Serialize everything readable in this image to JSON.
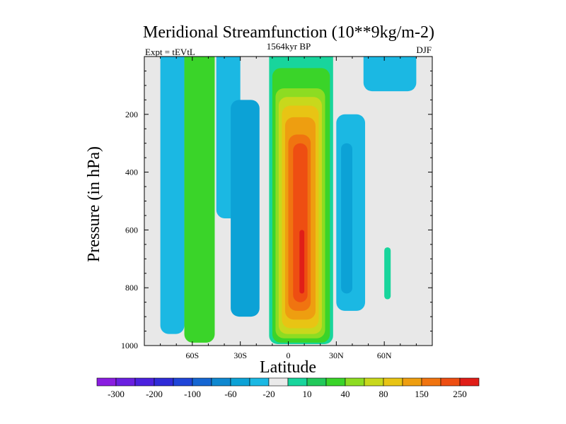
{
  "chart_data": {
    "type": "heatmap",
    "subtype": "filled-contour",
    "title": "Meridional Streamfunction (10**9kg/m-2)",
    "subtitle": "1564kyr BP",
    "left_label": "Expt = tEVtL",
    "right_label": "DJF",
    "xlabel": "Latitude",
    "ylabel": "Pressure (in hPa)",
    "xlim": [
      -90,
      90
    ],
    "ylim": [
      1000,
      0
    ],
    "y_inverted": true,
    "xticks": [
      {
        "value": -60,
        "label": "60S"
      },
      {
        "value": -30,
        "label": "30S"
      },
      {
        "value": 0,
        "label": "0"
      },
      {
        "value": 30,
        "label": "30N"
      },
      {
        "value": 60,
        "label": "60N"
      }
    ],
    "yticks": [
      {
        "value": 200,
        "label": "200"
      },
      {
        "value": 400,
        "label": "400"
      },
      {
        "value": 600,
        "label": "600"
      },
      {
        "value": 800,
        "label": "800"
      },
      {
        "value": 1000,
        "label": "1000"
      }
    ],
    "background_color": "#e8e8e8",
    "colorbar": {
      "colors": [
        "#8a1de0",
        "#6a1fe0",
        "#4b21de",
        "#2f2bd8",
        "#1f45d8",
        "#1566d2",
        "#0f88d0",
        "#0ca2d6",
        "#1bb8e3",
        "#eaeaea",
        "#18d59c",
        "#22c95a",
        "#3ad429",
        "#8ddc22",
        "#c8d81c",
        "#e8c414",
        "#ee9e10",
        "#f07410",
        "#ee4e12",
        "#e01e18"
      ],
      "labels": [
        {
          "after_box": 1,
          "label": "-300"
        },
        {
          "after_box": 3,
          "label": "-200"
        },
        {
          "after_box": 5,
          "label": "-100"
        },
        {
          "after_box": 7,
          "label": "-60"
        },
        {
          "after_box": 9,
          "label": "-20"
        },
        {
          "after_box": 11,
          "label": "10"
        },
        {
          "after_box": 13,
          "label": "40"
        },
        {
          "after_box": 15,
          "label": "80"
        },
        {
          "after_box": 17,
          "label": "150"
        },
        {
          "after_box": 19,
          "label": "250"
        }
      ]
    },
    "regions": [
      {
        "name": "westerly-cell-a",
        "color": "#1bb8e3",
        "lat": [
          -80,
          -65
        ],
        "p_top": 0,
        "p_bottom": 960
      },
      {
        "name": "green-band-south",
        "color": "#3ad429",
        "lat": [
          -65,
          -46
        ],
        "p_top": 0,
        "p_bottom": 990
      },
      {
        "name": "cyan-cell-b",
        "color": "#1bb8e3",
        "lat": [
          -45,
          -30
        ],
        "p_top": 0,
        "p_bottom": 560
      },
      {
        "name": "mid-blue-cell-south",
        "color": "#0ca2d6",
        "lat": [
          -36,
          -18
        ],
        "p_top": 150,
        "p_bottom": 900
      },
      {
        "name": "equatorial-level-1",
        "color": "#18d59c",
        "lat": [
          -12,
          28
        ],
        "p_top": 0,
        "p_bottom": 995
      },
      {
        "name": "equatorial-level-2",
        "color": "#3ad429",
        "lat": [
          -10,
          26
        ],
        "p_top": 40,
        "p_bottom": 990
      },
      {
        "name": "equatorial-level-3",
        "color": "#8ddc22",
        "lat": [
          -8,
          23
        ],
        "p_top": 110,
        "p_bottom": 975
      },
      {
        "name": "equatorial-level-4",
        "color": "#c8d81c",
        "lat": [
          -6,
          21
        ],
        "p_top": 140,
        "p_bottom": 960
      },
      {
        "name": "equatorial-level-5",
        "color": "#e8c414",
        "lat": [
          -4,
          19
        ],
        "p_top": 170,
        "p_bottom": 940
      },
      {
        "name": "equatorial-level-6",
        "color": "#ee9e10",
        "lat": [
          -2,
          17
        ],
        "p_top": 210,
        "p_bottom": 910
      },
      {
        "name": "equatorial-level-7",
        "color": "#f07410",
        "lat": [
          0,
          14
        ],
        "p_top": 270,
        "p_bottom": 880
      },
      {
        "name": "equatorial-level-8",
        "color": "#ee4e12",
        "lat": [
          3,
          12
        ],
        "p_top": 300,
        "p_bottom": 850
      },
      {
        "name": "equatorial-core",
        "color": "#e01e18",
        "lat": [
          7,
          10
        ],
        "p_top": 600,
        "p_bottom": 820
      },
      {
        "name": "northern-cyan-cell",
        "color": "#1bb8e3",
        "lat": [
          30,
          48
        ],
        "p_top": 200,
        "p_bottom": 880
      },
      {
        "name": "northern-blue-core",
        "color": "#0ca2d6",
        "lat": [
          33,
          40
        ],
        "p_top": 300,
        "p_bottom": 820
      },
      {
        "name": "upper-north-cyan",
        "color": "#1bb8e3",
        "lat": [
          47,
          80
        ],
        "p_top": 0,
        "p_bottom": 120
      },
      {
        "name": "northern-teal-patch",
        "color": "#18d59c",
        "lat": [
          60,
          64
        ],
        "p_top": 660,
        "p_bottom": 840
      }
    ]
  }
}
